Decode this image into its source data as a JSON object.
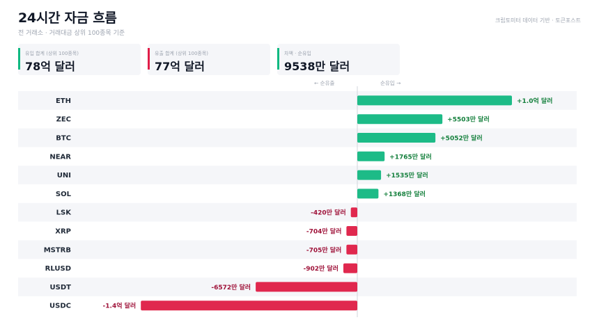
{
  "header": {
    "title": "24시간 자금 흐름",
    "subtitle": "전 거래소 · 거래대금 상위 100종목 기준",
    "source": "크립토미터 데이터 기반 · 토큰포스트"
  },
  "cards": [
    {
      "label": "유입 합계 (상위 100종목)",
      "value": "78억 달러",
      "color": "#10b981"
    },
    {
      "label": "유출 합계 (상위 100종목)",
      "value": "77억 달러",
      "color": "#e11d48"
    },
    {
      "label": "차액 · 순유입",
      "value": "9538만 달러",
      "color": "#10b981"
    }
  ],
  "direction": {
    "left": "← 순유출",
    "right": "순유입 →"
  },
  "colors": {
    "positive": "#1dbb87",
    "negative": "#e0284e",
    "row_alt": "#f5f6f9"
  },
  "chart_data": {
    "type": "bar",
    "orientation": "horizontal",
    "categories": [
      "ETH",
      "ZEC",
      "BTC",
      "NEAR",
      "UNI",
      "SOL",
      "LSK",
      "XRP",
      "MSTRB",
      "RLUSD",
      "USDT",
      "USDC"
    ],
    "values": [
      10000,
      5503,
      5052,
      1765,
      1535,
      1368,
      -420,
      -704,
      -705,
      -902,
      -6572,
      -14000
    ],
    "value_labels": [
      "+1.0억 달러",
      "+5503만 달러",
      "+5052만 달러",
      "+1765만 달러",
      "+1535만 달러",
      "+1368만 달러",
      "-420만 달러",
      "-704만 달러",
      "-705만 달러",
      "-902만 달러",
      "-6572만 달러",
      "-1.4억 달러"
    ],
    "unit": "만 달러"
  }
}
